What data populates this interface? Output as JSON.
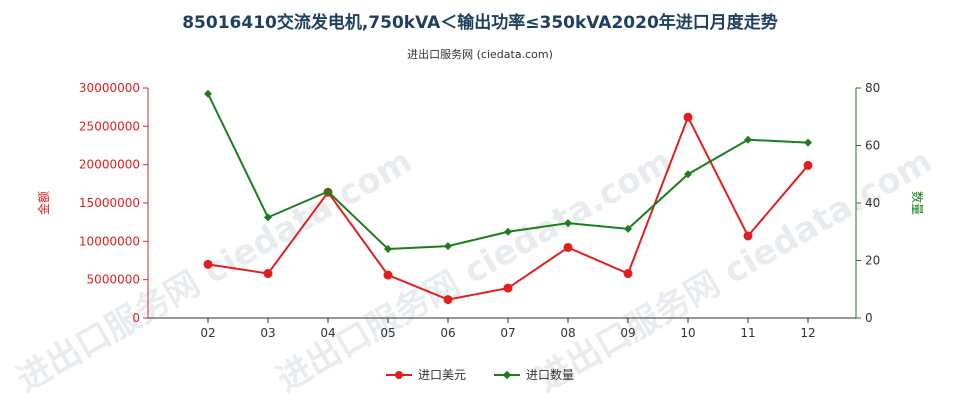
{
  "chart_data": {
    "type": "line",
    "title": "85016410交流发电机,750kVA＜输出功率≤350kVA2020年进口月度走势",
    "subtitle": "进出口服务网 (ciedata.com)",
    "categories": [
      "02",
      "03",
      "04",
      "05",
      "06",
      "07",
      "08",
      "09",
      "10",
      "11",
      "12"
    ],
    "y_left": {
      "label": "金额",
      "min": 0,
      "max": 30000000,
      "ticks": [
        0,
        5000000,
        10000000,
        15000000,
        20000000,
        25000000,
        30000000
      ],
      "color": "#e02020"
    },
    "y_right": {
      "label": "数量",
      "min": 0,
      "max": 80,
      "ticks": [
        0,
        20,
        40,
        60,
        80
      ],
      "color": "#1a7f1a"
    },
    "series": [
      {
        "name": "进口美元",
        "axis": "left",
        "color": "#e02020",
        "marker": "circle",
        "values": [
          7000000,
          5800000,
          16400000,
          5600000,
          2400000,
          3900000,
          9200000,
          5800000,
          26200000,
          10700000,
          19900000
        ]
      },
      {
        "name": "进口数量",
        "axis": "right",
        "color": "#1a7f1a",
        "marker": "diamond",
        "values": [
          78,
          35,
          44,
          24,
          25,
          30,
          33,
          31,
          50,
          62,
          61
        ]
      }
    ],
    "legend_position": "bottom-center",
    "grid": false,
    "watermark": "进出口服务网 ciedata.com"
  }
}
